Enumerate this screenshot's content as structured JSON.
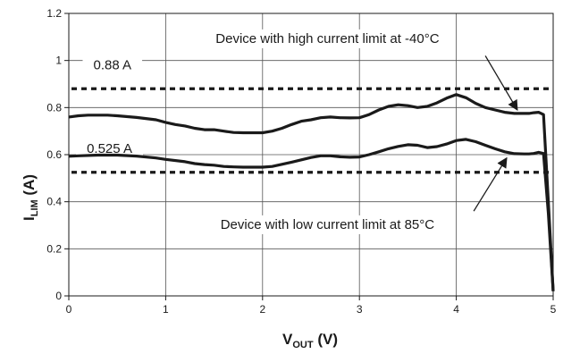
{
  "chart_data": {
    "type": "line",
    "xlabel": {
      "main": "V",
      "sub": "OUT",
      "unit": " (V)"
    },
    "ylabel": {
      "main": "I",
      "sub": "LIM",
      "unit": " (A)"
    },
    "xlim": [
      0,
      5
    ],
    "ylim": [
      0,
      1.2
    ],
    "xticks": [
      "0",
      "1",
      "2",
      "3",
      "4",
      "5"
    ],
    "yticks": [
      "0",
      "0.2",
      "0.4",
      "0.6",
      "0.8",
      "1",
      "1.2"
    ],
    "grid": true,
    "series": [
      {
        "x": [
          0,
          0.1,
          0.2,
          0.4,
          0.5,
          0.7,
          0.9,
          1.0,
          1.1,
          1.2,
          1.3,
          1.4,
          1.5,
          1.6,
          1.7,
          1.8,
          1.9,
          2.0,
          2.1,
          2.2,
          2.3,
          2.4,
          2.5,
          2.6,
          2.7,
          2.8,
          2.9,
          3.0,
          3.1,
          3.2,
          3.3,
          3.4,
          3.5,
          3.6,
          3.7,
          3.8,
          3.9,
          4.0,
          4.1,
          4.2,
          4.3,
          4.4,
          4.5,
          4.6,
          4.7,
          4.75,
          4.8,
          4.85,
          4.9,
          4.95,
          5.0
        ],
        "y": [
          0.76,
          0.765,
          0.768,
          0.768,
          0.765,
          0.758,
          0.748,
          0.737,
          0.728,
          0.722,
          0.712,
          0.706,
          0.706,
          0.7,
          0.694,
          0.693,
          0.693,
          0.693,
          0.7,
          0.712,
          0.728,
          0.742,
          0.748,
          0.757,
          0.76,
          0.757,
          0.756,
          0.757,
          0.77,
          0.79,
          0.805,
          0.812,
          0.808,
          0.8,
          0.805,
          0.82,
          0.84,
          0.855,
          0.842,
          0.818,
          0.8,
          0.79,
          0.78,
          0.775,
          0.775,
          0.775,
          0.778,
          0.78,
          0.77,
          0.4,
          0.02
        ]
      },
      {
        "x": [
          0,
          0.1,
          0.3,
          0.5,
          0.7,
          0.9,
          1.0,
          1.2,
          1.3,
          1.4,
          1.5,
          1.6,
          1.7,
          1.8,
          1.9,
          2.0,
          2.1,
          2.3,
          2.4,
          2.5,
          2.6,
          2.7,
          2.8,
          2.9,
          3.0,
          3.1,
          3.2,
          3.3,
          3.4,
          3.5,
          3.6,
          3.7,
          3.8,
          3.9,
          4.0,
          4.1,
          4.2,
          4.3,
          4.4,
          4.5,
          4.6,
          4.7,
          4.75,
          4.8,
          4.85,
          4.9,
          4.95,
          5.0
        ],
        "y": [
          0.593,
          0.595,
          0.598,
          0.598,
          0.594,
          0.586,
          0.58,
          0.57,
          0.562,
          0.558,
          0.555,
          0.55,
          0.548,
          0.547,
          0.547,
          0.547,
          0.55,
          0.568,
          0.578,
          0.588,
          0.595,
          0.595,
          0.591,
          0.589,
          0.59,
          0.6,
          0.612,
          0.625,
          0.635,
          0.642,
          0.64,
          0.63,
          0.634,
          0.645,
          0.66,
          0.665,
          0.655,
          0.64,
          0.625,
          0.612,
          0.604,
          0.603,
          0.603,
          0.605,
          0.61,
          0.605,
          0.35,
          0.02
        ]
      }
    ],
    "reference_lines": [
      {
        "y": 0.88,
        "label": "0.88 A",
        "label_x": 0.45,
        "style": "dashed"
      },
      {
        "y": 0.525,
        "label": "0.525 A",
        "label_x": 0.42,
        "style": "dashed"
      }
    ],
    "annotations": [
      {
        "text": "Device with high current limit at -40°C",
        "x": 2.67,
        "y": 1.075,
        "arrow_from": [
          4.3,
          1.02
        ],
        "arrow_to": [
          4.63,
          0.79
        ]
      },
      {
        "text": "Device with low current limit at 85°C",
        "x": 2.67,
        "y": 0.285,
        "arrow_from": [
          4.18,
          0.36
        ],
        "arrow_to": [
          4.52,
          0.586
        ]
      }
    ]
  }
}
